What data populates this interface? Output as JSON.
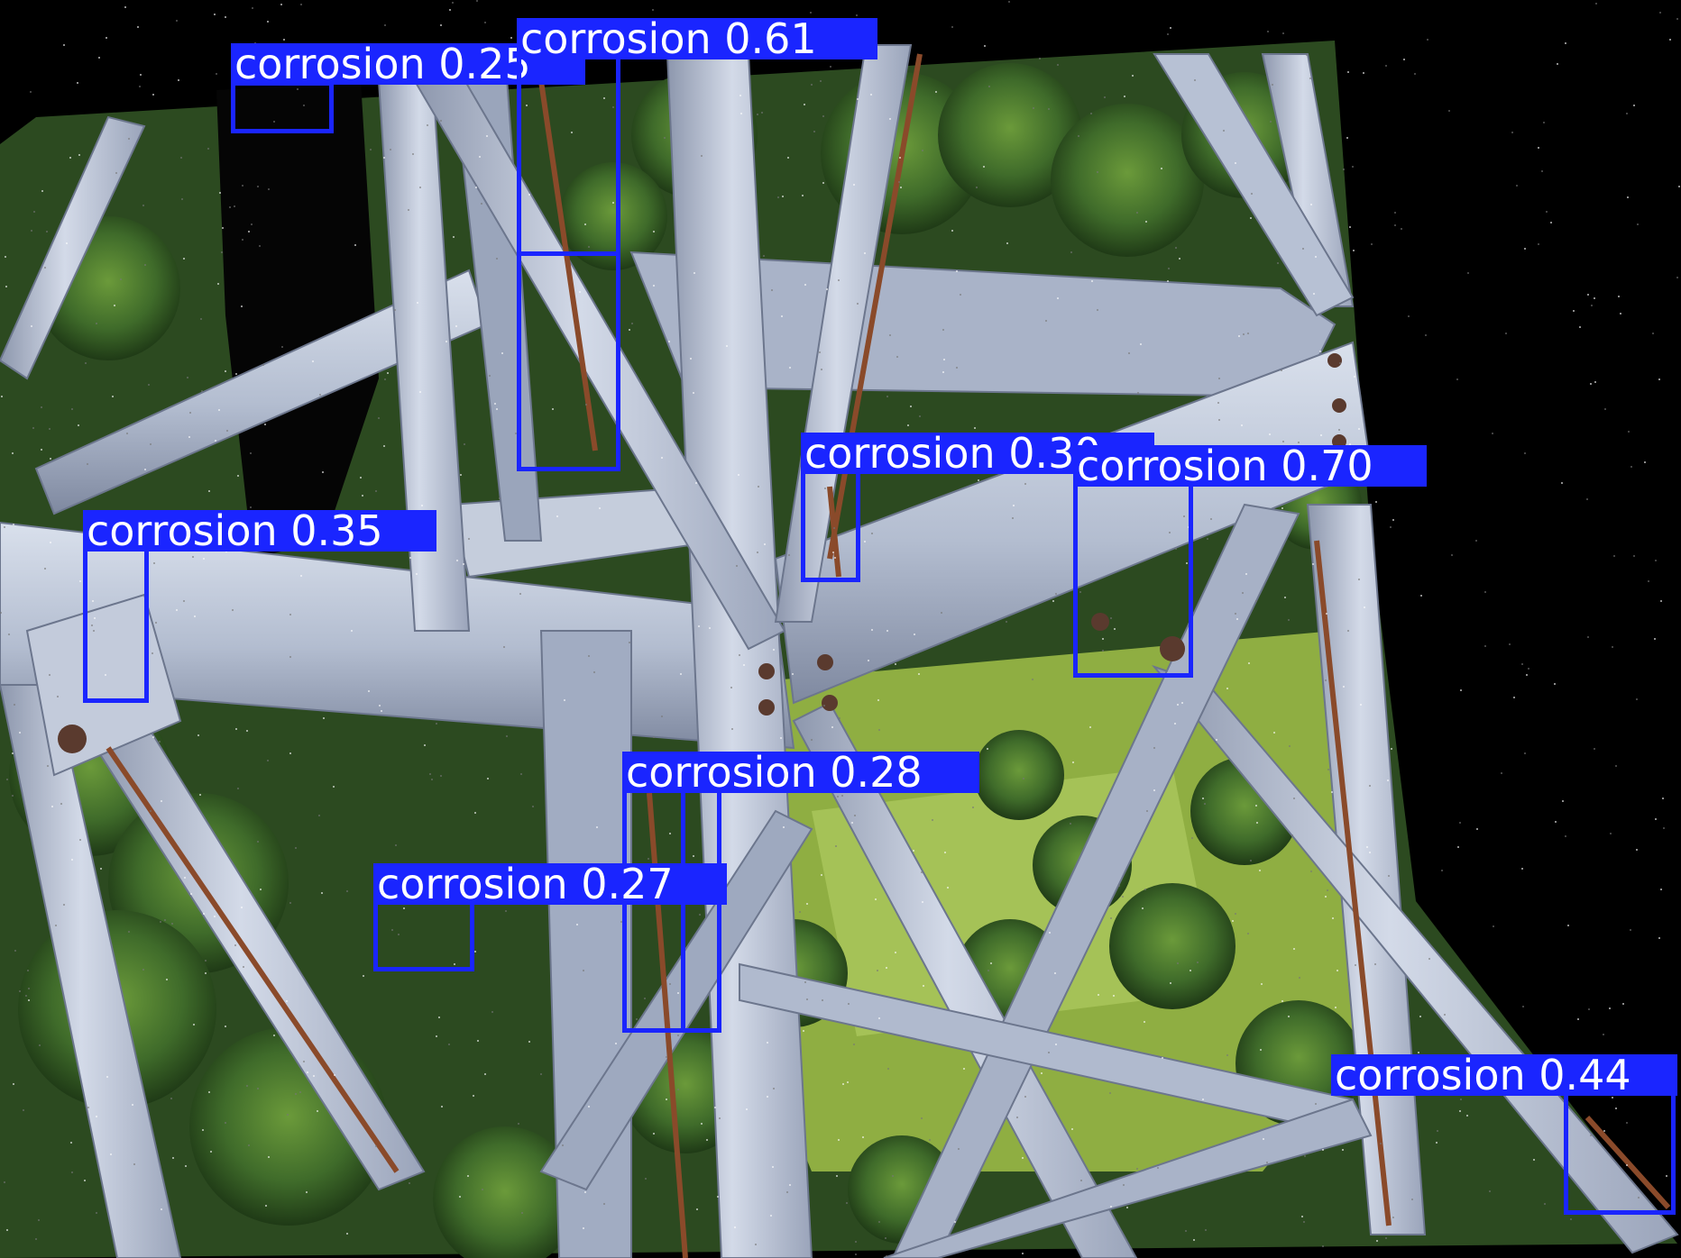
{
  "image": {
    "description_labels": [
      "transmission tower steel lattice",
      "forest background"
    ]
  },
  "detections": [
    {
      "label": "corrosion 0.25"
    },
    {
      "label": "corrosion 0.61"
    },
    {
      "label": "corrosion 0.30"
    },
    {
      "label": "corrosion 0.70"
    },
    {
      "label": "corrosion 0.35"
    },
    {
      "label": "corrosion 0.28"
    },
    {
      "label": "corrosion 0.27"
    },
    {
      "label": "corrosion 0.44"
    }
  ],
  "colors": {
    "box": "#1a25ff",
    "label_text": "#ffffff",
    "steel": "#b9c3d6",
    "rust": "#8a4a2a",
    "foliage": "#3f6b2a",
    "grass": "#9ab84a"
  }
}
